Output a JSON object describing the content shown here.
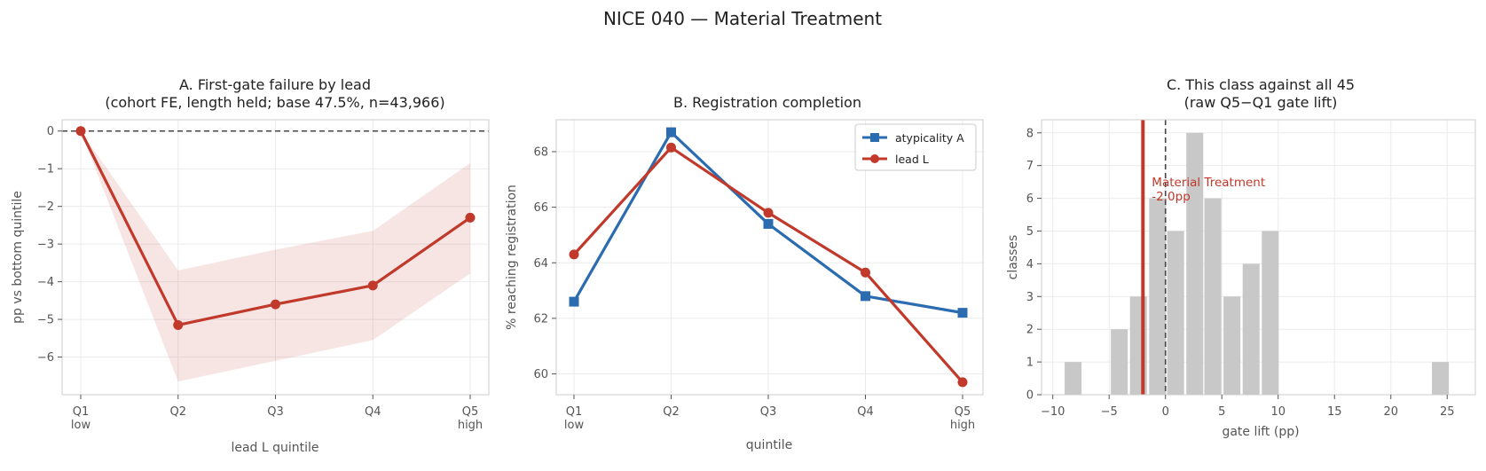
{
  "figure": {
    "title": "NICE 040 — Material Treatment"
  },
  "chart_data": [
    {
      "type": "line",
      "title_lines": [
        "A. First-gate failure by lead",
        "(cohort FE, length held; base 47.5%, n=43,966)"
      ],
      "xlabel": "lead L quintile",
      "ylabel": "pp vs bottom quintile",
      "categories": [
        "Q1",
        "Q2",
        "Q3",
        "Q4",
        "Q5"
      ],
      "category_sublabels": [
        "low",
        "",
        "",
        "",
        "high"
      ],
      "ylim": [
        -7.0,
        0.3
      ],
      "yticks": [
        0,
        -1,
        -2,
        -3,
        -4,
        -5,
        -6
      ],
      "series": [
        {
          "values": [
            0.0,
            -5.15,
            -4.6,
            -4.1,
            -2.3
          ],
          "ci_low": [
            0.0,
            -6.65,
            -6.1,
            -5.55,
            -3.78
          ],
          "ci_high": [
            0.0,
            -3.7,
            -3.15,
            -2.65,
            -0.85
          ],
          "color": "#c0392b"
        }
      ],
      "reference_line": 0,
      "grid": true
    },
    {
      "type": "line",
      "title_lines": [
        "B. Registration completion"
      ],
      "xlabel": "quintile",
      "ylabel": "% reaching registration",
      "categories": [
        "Q1",
        "Q2",
        "Q3",
        "Q4",
        "Q5"
      ],
      "category_sublabels": [
        "low",
        "",
        "",
        "",
        "high"
      ],
      "ylim": [
        59.25,
        69.15
      ],
      "yticks": [
        60,
        62,
        64,
        66,
        68
      ],
      "series": [
        {
          "name": "atypicality A",
          "values": [
            62.6,
            68.7,
            65.4,
            62.8,
            62.2
          ],
          "color": "#2b6cb0",
          "marker": "square"
        },
        {
          "name": "lead L",
          "values": [
            64.3,
            68.15,
            65.8,
            63.65,
            59.7
          ],
          "color": "#c0392b",
          "marker": "circle"
        }
      ],
      "legend_position": "top-right",
      "grid": true
    },
    {
      "type": "bar",
      "title_lines": [
        "C. This class against all 45",
        "(raw Q5−Q1 gate lift)"
      ],
      "xlabel": "gate lift (pp)",
      "ylabel": "classes",
      "xlim": [
        -11,
        27.5
      ],
      "xticks": [
        -10,
        -5,
        0,
        5,
        10,
        15,
        20,
        25
      ],
      "ylim": [
        0,
        8.4
      ],
      "yticks": [
        0,
        1,
        2,
        3,
        4,
        5,
        6,
        7,
        8
      ],
      "bins": [
        {
          "center": -8.2,
          "count": 1
        },
        {
          "center": -4.1,
          "count": 2
        },
        {
          "center": -2.4,
          "count": 3
        },
        {
          "center": -0.7,
          "count": 6
        },
        {
          "center": 0.9,
          "count": 5
        },
        {
          "center": 2.6,
          "count": 8
        },
        {
          "center": 4.2,
          "count": 6
        },
        {
          "center": 5.9,
          "count": 3
        },
        {
          "center": 7.6,
          "count": 4
        },
        {
          "center": 9.3,
          "count": 5
        },
        {
          "center": 24.4,
          "count": 1
        }
      ],
      "bar_color": "#c8c8c8",
      "highlight": {
        "value": -2.0,
        "label_lines": [
          "Material Treatment",
          "-2.0pp"
        ],
        "color": "#c0392b"
      },
      "reference_line": 0,
      "grid": true
    }
  ]
}
